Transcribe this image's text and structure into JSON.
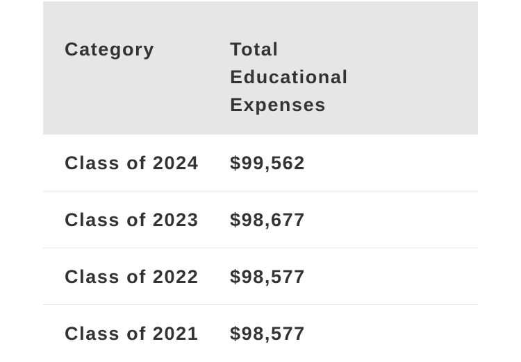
{
  "table": {
    "columns": [
      "Category",
      "Total Educational Expenses"
    ],
    "rows": [
      [
        "Class of 2024",
        "$99,562"
      ],
      [
        "Class of 2023",
        "$98,677"
      ],
      [
        "Class of 2022",
        "$98,577"
      ],
      [
        "Class of 2021",
        "$98,577"
      ]
    ]
  }
}
